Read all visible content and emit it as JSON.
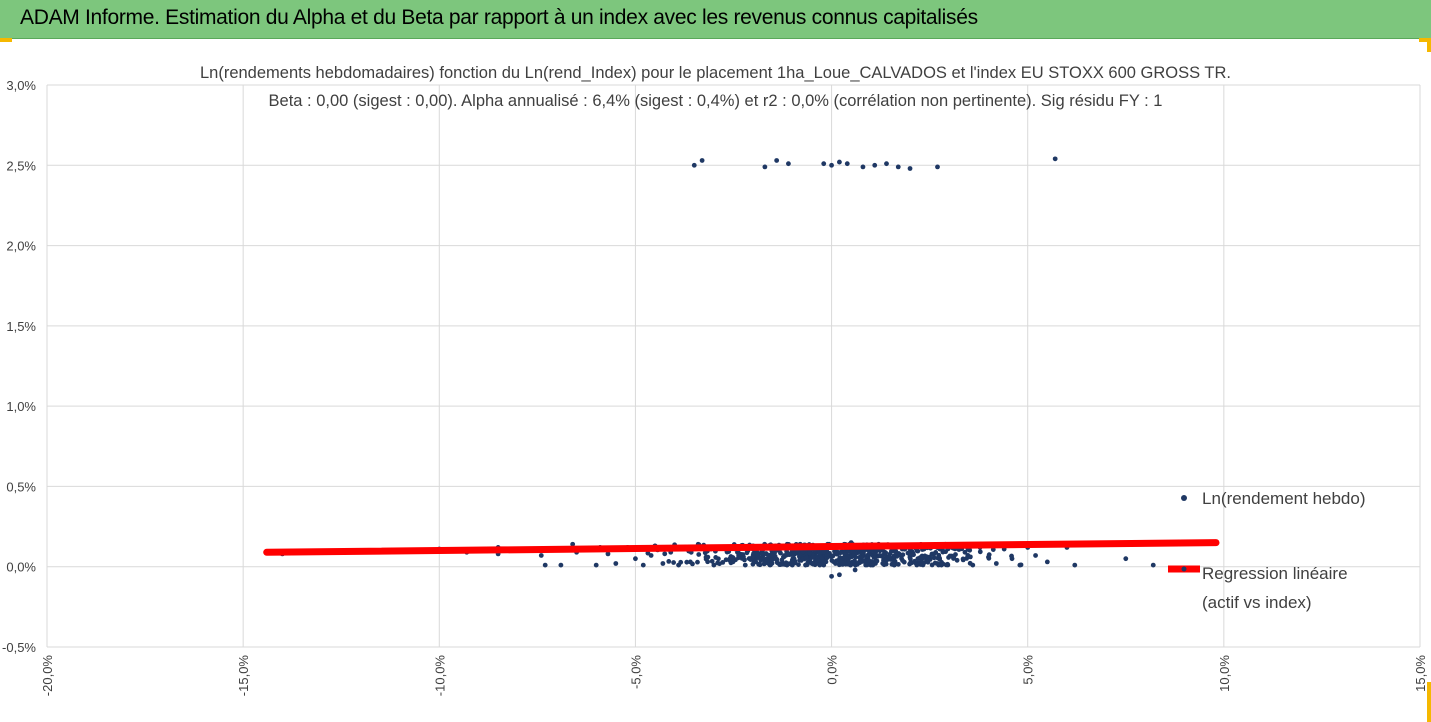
{
  "banner": {
    "title": "ADAM Informe. Estimation du Alpha et du Beta par rapport à un index avec les revenus connus capitalisés"
  },
  "colors": {
    "banner": "#7dc67d",
    "corner_marks": "#f5b800",
    "points": "#1f3864",
    "regression": "#ff0000",
    "grid": "#d9d9d9",
    "text": "#404040"
  },
  "chart_data": {
    "type": "scatter",
    "title": "Ln(rendements hebdomadaires) fonction du Ln(rend_Index) pour le placement 1ha_Loue_CALVADOS et l'index EU STOXX 600 GROSS TR.",
    "subtitle": "Beta : 0,00 (sigest : 0,00). Alpha annualisé : 6,4% (sigest : 0,4%) et r2 : 0,0% (corrélation non pertinente). Sig résidu FY : 1",
    "xlim": [
      -0.2,
      0.15
    ],
    "ylim": [
      -0.005,
      0.03
    ],
    "x_ticks": [
      "-20,0%",
      "-15,0%",
      "-10,0%",
      "-5,0%",
      "0,0%",
      "5,0%",
      "10,0%",
      "15,0%"
    ],
    "y_ticks": [
      "-0,5%",
      "0,0%",
      "0,5%",
      "1,0%",
      "1,5%",
      "2,0%",
      "2,5%",
      "3,0%"
    ],
    "grid": "vertical and horizontal",
    "legend_position": "right",
    "series": [
      {
        "name": "Ln(rendement hebdo)",
        "type": "scatter",
        "color": "#1f3864",
        "points": [
          [
            -0.144,
            0.0009
          ],
          [
            -0.14,
            0.0008
          ],
          [
            -0.115,
            0.001
          ],
          [
            -0.1,
            0.0011
          ],
          [
            -0.093,
            0.0009
          ],
          [
            -0.085,
            0.0012
          ],
          [
            -0.085,
            0.0008
          ],
          [
            -0.074,
            0.0007
          ],
          [
            -0.073,
            0.0001
          ],
          [
            -0.069,
            0.0001
          ],
          [
            -0.066,
            0.0014
          ],
          [
            -0.065,
            0.0009
          ],
          [
            -0.06,
            0.0001
          ],
          [
            -0.059,
            0.0012
          ],
          [
            -0.057,
            0.0008
          ],
          [
            -0.055,
            0.0002
          ],
          [
            -0.052,
            0.0012
          ],
          [
            -0.05,
            0.0005
          ],
          [
            -0.048,
            0.0001
          ],
          [
            -0.046,
            0.0007
          ],
          [
            -0.045,
            0.0013
          ],
          [
            -0.043,
            0.0002
          ],
          [
            -0.041,
            0.0009
          ],
          [
            -0.039,
            0.0001
          ],
          [
            -0.037,
            0.0011
          ],
          [
            -0.036,
            0.0003
          ],
          [
            -0.034,
            0.0014
          ],
          [
            -0.032,
            0.0006
          ],
          [
            -0.03,
            0.0001
          ],
          [
            -0.028,
            0.0012
          ],
          [
            -0.026,
            0.0004
          ],
          [
            -0.024,
            0.0009
          ],
          [
            -0.022,
            0.0001
          ],
          [
            -0.02,
            0.0013
          ],
          [
            -0.018,
            0.0005
          ],
          [
            -0.016,
            0.0002
          ],
          [
            -0.014,
            0.0011
          ],
          [
            -0.012,
            0.0007
          ],
          [
            -0.01,
            0.0001
          ],
          [
            -0.008,
            0.0014
          ],
          [
            -0.006,
            0.0003
          ],
          [
            -0.004,
            0.0009
          ],
          [
            -0.002,
            0.0001
          ],
          [
            0.0,
            -0.0006
          ],
          [
            0.002,
            -0.0005
          ],
          [
            0.004,
            0.0012
          ],
          [
            0.006,
            -0.0002
          ],
          [
            0.008,
            0.0009
          ],
          [
            0.01,
            0.0001
          ],
          [
            0.012,
            0.0014
          ],
          [
            0.014,
            0.0004
          ],
          [
            0.016,
            0.0001
          ],
          [
            0.018,
            0.0011
          ],
          [
            0.02,
            0.0006
          ],
          [
            0.022,
            0.0002
          ],
          [
            0.024,
            0.0013
          ],
          [
            0.026,
            0.0008
          ],
          [
            0.028,
            0.0001
          ],
          [
            0.03,
            0.0012
          ],
          [
            0.032,
            0.0004
          ],
          [
            0.034,
            0.0009
          ],
          [
            0.036,
            0.0001
          ],
          [
            0.038,
            0.0013
          ],
          [
            0.04,
            0.0006
          ],
          [
            0.042,
            0.0002
          ],
          [
            0.044,
            0.0011
          ],
          [
            0.046,
            0.0005
          ],
          [
            0.048,
            0.0001
          ],
          [
            0.05,
            0.0012
          ],
          [
            0.052,
            0.0007
          ],
          [
            0.055,
            0.0003
          ],
          [
            0.06,
            0.0012
          ],
          [
            0.062,
            0.0001
          ],
          [
            0.075,
            0.0005
          ],
          [
            0.082,
            0.0001
          ],
          [
            -0.035,
            0.025
          ],
          [
            -0.033,
            0.0253
          ],
          [
            -0.017,
            0.0249
          ],
          [
            -0.014,
            0.0253
          ],
          [
            -0.011,
            0.0251
          ],
          [
            -0.002,
            0.0251
          ],
          [
            0.0,
            0.025
          ],
          [
            0.002,
            0.0252
          ],
          [
            0.004,
            0.0251
          ],
          [
            0.008,
            0.0249
          ],
          [
            0.011,
            0.025
          ],
          [
            0.014,
            0.0251
          ],
          [
            0.017,
            0.0249
          ],
          [
            0.02,
            0.0248
          ],
          [
            0.027,
            0.0249
          ],
          [
            0.057,
            0.0254
          ],
          [
            -0.004,
            0.0011
          ],
          [
            0.003,
            0.0009
          ],
          [
            -0.008,
            0.0006
          ],
          [
            0.009,
            0.0012
          ],
          [
            -0.013,
            0.0013
          ],
          [
            0.013,
            0.0007
          ],
          [
            -0.019,
            0.0008
          ],
          [
            0.019,
            0.0013
          ],
          [
            -0.025,
            0.0012
          ],
          [
            0.025,
            0.0006
          ],
          [
            -0.001,
            0.0014
          ],
          [
            0.001,
            0.0002
          ],
          [
            0.005,
            0.0015
          ],
          [
            -0.005,
            0.0002
          ]
        ]
      },
      {
        "name": "Regression linéaire (actif vs index)",
        "type": "line",
        "color": "#ff0000",
        "points": [
          [
            -0.144,
            0.0009
          ],
          [
            0.098,
            0.0015
          ]
        ]
      }
    ]
  }
}
